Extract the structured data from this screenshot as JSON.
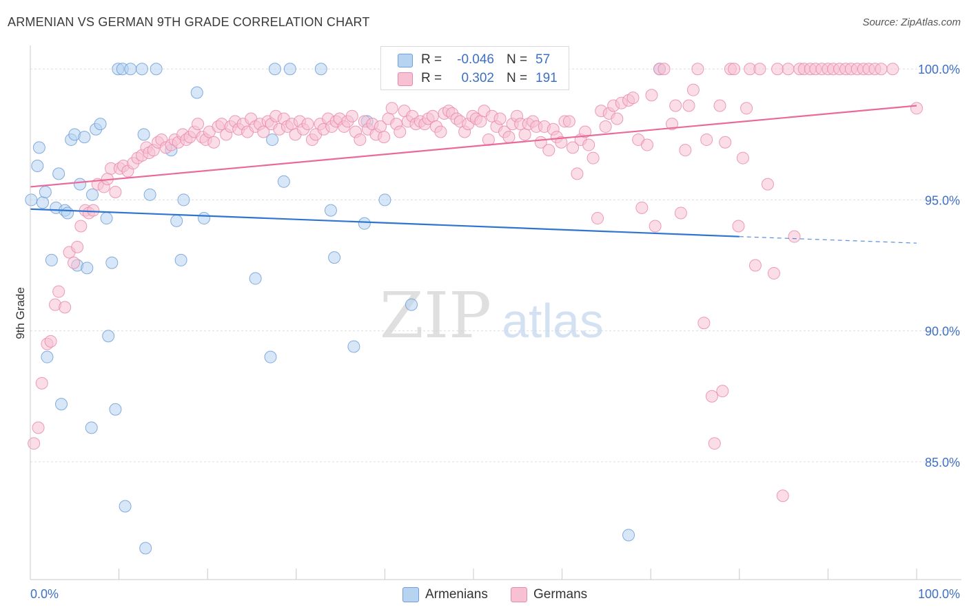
{
  "title": "ARMENIAN VS GERMAN 9TH GRADE CORRELATION CHART",
  "source": "Source: ZipAtlas.com",
  "watermark": {
    "zip": "ZIP",
    "atlas": "atlas"
  },
  "legend_box": {
    "rows": [
      {
        "r_label": "R =",
        "r_value": "-0.046",
        "n_label": "N =",
        "n_value": "57"
      },
      {
        "r_label": "R =",
        "r_value": "0.302",
        "n_label": "N =",
        "n_value": "191"
      }
    ]
  },
  "bottom_legend": {
    "armenians": "Armenians",
    "germans": "Germans"
  },
  "colors": {
    "armenian_fill": "#b7d3f2",
    "armenian_stroke": "#6f9ed8",
    "armenian_line": "#2f74d0",
    "german_fill": "#f7c1d3",
    "german_stroke": "#e989aa",
    "german_line": "#e8699a",
    "grid": "#dddddd",
    "tick_text": "#3d6fc4"
  },
  "chart_data": {
    "type": "scatter",
    "title": "ARMENIAN VS GERMAN 9TH GRADE CORRELATION CHART",
    "xlabel": "",
    "ylabel": "9th Grade",
    "xlim": [
      0,
      100
    ],
    "ylim": [
      80.5,
      100.9
    ],
    "x_tick_labels": [
      "0.0%",
      "100.0%"
    ],
    "y_ticks": [
      85,
      90,
      95,
      100
    ],
    "y_tick_labels": [
      "85.0%",
      "90.0%",
      "95.0%",
      "100.0%"
    ],
    "grid": true,
    "legend": "bottom-center",
    "series": [
      {
        "name": "Armenians",
        "R": -0.046,
        "N": 57,
        "trend": {
          "x0": 0,
          "y0": 94.65,
          "x1": 80,
          "y1": 93.6,
          "dashed_to_x": 100,
          "dashed_to_y": 93.35
        },
        "points": [
          [
            0.1,
            95.0
          ],
          [
            0.8,
            96.3
          ],
          [
            1.0,
            97.0
          ],
          [
            1.4,
            94.9
          ],
          [
            1.7,
            95.3
          ],
          [
            1.9,
            89.0
          ],
          [
            2.4,
            92.7
          ],
          [
            2.9,
            94.7
          ],
          [
            3.2,
            96.0
          ],
          [
            3.5,
            87.2
          ],
          [
            3.9,
            94.6
          ],
          [
            4.2,
            94.5
          ],
          [
            4.6,
            97.3
          ],
          [
            5.0,
            97.5
          ],
          [
            5.3,
            92.5
          ],
          [
            5.6,
            95.6
          ],
          [
            6.1,
            97.4
          ],
          [
            6.4,
            92.4
          ],
          [
            6.9,
            86.3
          ],
          [
            7.0,
            95.2
          ],
          [
            7.4,
            97.7
          ],
          [
            7.9,
            97.9
          ],
          [
            8.6,
            94.3
          ],
          [
            8.8,
            89.8
          ],
          [
            9.2,
            92.6
          ],
          [
            9.6,
            87.0
          ],
          [
            9.9,
            100.0
          ],
          [
            10.4,
            100.0
          ],
          [
            10.7,
            83.3
          ],
          [
            11.3,
            100.0
          ],
          [
            12.6,
            100.0
          ],
          [
            12.8,
            97.5
          ],
          [
            13.0,
            81.7
          ],
          [
            13.5,
            95.2
          ],
          [
            14.2,
            100.0
          ],
          [
            15.9,
            96.9
          ],
          [
            16.5,
            94.2
          ],
          [
            17.0,
            92.7
          ],
          [
            17.3,
            95.0
          ],
          [
            18.8,
            99.1
          ],
          [
            19.6,
            94.3
          ],
          [
            25.4,
            92.0
          ],
          [
            27.1,
            89.0
          ],
          [
            27.3,
            97.3
          ],
          [
            27.6,
            100.0
          ],
          [
            28.6,
            95.7
          ],
          [
            29.3,
            100.0
          ],
          [
            32.8,
            100.0
          ],
          [
            33.9,
            94.6
          ],
          [
            34.3,
            92.8
          ],
          [
            36.5,
            89.4
          ],
          [
            37.7,
            94.1
          ],
          [
            38.0,
            98.0
          ],
          [
            40.0,
            95.0
          ],
          [
            43.0,
            91.0
          ],
          [
            67.5,
            82.2
          ],
          [
            71.0,
            100.0
          ]
        ]
      },
      {
        "name": "Germans",
        "R": 0.302,
        "N": 191,
        "trend": {
          "x0": 0,
          "y0": 95.5,
          "x1": 100,
          "y1": 98.6
        },
        "points": [
          [
            0.4,
            85.7
          ],
          [
            0.9,
            86.3
          ],
          [
            1.3,
            88.0
          ],
          [
            1.9,
            89.5
          ],
          [
            2.3,
            89.6
          ],
          [
            2.8,
            91.0
          ],
          [
            3.2,
            91.5
          ],
          [
            3.9,
            90.9
          ],
          [
            4.4,
            93.0
          ],
          [
            4.9,
            92.6
          ],
          [
            5.3,
            93.2
          ],
          [
            5.7,
            94.0
          ],
          [
            6.2,
            94.6
          ],
          [
            6.6,
            94.5
          ],
          [
            7.1,
            94.6
          ],
          [
            7.6,
            95.6
          ],
          [
            8.3,
            95.5
          ],
          [
            8.7,
            95.8
          ],
          [
            9.1,
            96.2
          ],
          [
            9.6,
            95.3
          ],
          [
            10.1,
            96.2
          ],
          [
            10.5,
            96.3
          ],
          [
            11.0,
            96.1
          ],
          [
            11.6,
            96.4
          ],
          [
            12.1,
            96.6
          ],
          [
            12.6,
            96.7
          ],
          [
            13.1,
            97.0
          ],
          [
            13.4,
            96.8
          ],
          [
            13.9,
            96.9
          ],
          [
            14.4,
            97.2
          ],
          [
            14.8,
            97.3
          ],
          [
            15.3,
            97.0
          ],
          [
            15.9,
            97.1
          ],
          [
            16.3,
            97.3
          ],
          [
            16.7,
            97.2
          ],
          [
            17.2,
            97.5
          ],
          [
            17.6,
            97.3
          ],
          [
            18.0,
            97.4
          ],
          [
            18.5,
            97.6
          ],
          [
            18.9,
            97.9
          ],
          [
            19.4,
            97.4
          ],
          [
            19.8,
            97.3
          ],
          [
            20.2,
            97.6
          ],
          [
            20.7,
            97.2
          ],
          [
            21.2,
            97.8
          ],
          [
            21.6,
            97.9
          ],
          [
            22.1,
            97.5
          ],
          [
            22.6,
            97.8
          ],
          [
            23.1,
            98.0
          ],
          [
            23.5,
            97.7
          ],
          [
            24.0,
            97.9
          ],
          [
            24.5,
            97.6
          ],
          [
            24.9,
            98.1
          ],
          [
            25.4,
            97.8
          ],
          [
            25.9,
            97.9
          ],
          [
            26.3,
            97.6
          ],
          [
            26.8,
            98.0
          ],
          [
            27.2,
            97.9
          ],
          [
            27.7,
            98.2
          ],
          [
            28.1,
            97.7
          ],
          [
            28.6,
            98.1
          ],
          [
            29.0,
            97.8
          ],
          [
            29.5,
            97.9
          ],
          [
            29.9,
            97.5
          ],
          [
            30.4,
            98.0
          ],
          [
            30.8,
            97.7
          ],
          [
            31.3,
            97.9
          ],
          [
            31.8,
            97.3
          ],
          [
            32.2,
            97.5
          ],
          [
            32.7,
            97.9
          ],
          [
            33.1,
            97.7
          ],
          [
            33.6,
            98.1
          ],
          [
            34.0,
            97.8
          ],
          [
            34.5,
            98.0
          ],
          [
            34.9,
            98.1
          ],
          [
            35.4,
            97.8
          ],
          [
            35.8,
            98.0
          ],
          [
            36.3,
            98.2
          ],
          [
            36.7,
            97.6
          ],
          [
            37.2,
            97.3
          ],
          [
            37.7,
            98.0
          ],
          [
            38.1,
            97.7
          ],
          [
            38.6,
            97.9
          ],
          [
            39.0,
            97.5
          ],
          [
            39.5,
            97.8
          ],
          [
            39.9,
            97.4
          ],
          [
            40.4,
            98.1
          ],
          [
            40.8,
            98.5
          ],
          [
            41.3,
            97.9
          ],
          [
            41.7,
            97.6
          ],
          [
            42.2,
            98.4
          ],
          [
            42.6,
            98.0
          ],
          [
            43.1,
            98.2
          ],
          [
            43.5,
            97.9
          ],
          [
            44.0,
            98.0
          ],
          [
            44.5,
            97.9
          ],
          [
            44.9,
            98.1
          ],
          [
            45.4,
            98.2
          ],
          [
            45.8,
            97.8
          ],
          [
            46.3,
            97.6
          ],
          [
            46.7,
            98.3
          ],
          [
            47.2,
            98.4
          ],
          [
            47.6,
            98.3
          ],
          [
            48.1,
            98.1
          ],
          [
            48.5,
            98.0
          ],
          [
            49.0,
            97.6
          ],
          [
            49.4,
            97.9
          ],
          [
            49.9,
            98.2
          ],
          [
            50.3,
            98.1
          ],
          [
            50.8,
            98.0
          ],
          [
            51.2,
            98.4
          ],
          [
            51.7,
            97.3
          ],
          [
            52.1,
            98.2
          ],
          [
            52.6,
            97.8
          ],
          [
            53.0,
            98.1
          ],
          [
            53.5,
            97.6
          ],
          [
            54.0,
            97.4
          ],
          [
            54.4,
            97.9
          ],
          [
            54.9,
            98.2
          ],
          [
            55.3,
            97.9
          ],
          [
            55.8,
            97.5
          ],
          [
            56.2,
            97.9
          ],
          [
            56.7,
            98.0
          ],
          [
            57.1,
            97.8
          ],
          [
            57.6,
            97.2
          ],
          [
            58.0,
            97.8
          ],
          [
            58.5,
            96.9
          ],
          [
            59.0,
            97.7
          ],
          [
            59.4,
            97.4
          ],
          [
            59.9,
            97.2
          ],
          [
            60.3,
            98.0
          ],
          [
            60.8,
            98.0
          ],
          [
            61.2,
            97.0
          ],
          [
            61.7,
            96.0
          ],
          [
            62.1,
            97.3
          ],
          [
            62.6,
            97.6
          ],
          [
            63.0,
            97.1
          ],
          [
            63.5,
            96.6
          ],
          [
            64.0,
            94.3
          ],
          [
            64.4,
            98.4
          ],
          [
            64.9,
            97.8
          ],
          [
            65.3,
            98.3
          ],
          [
            65.8,
            98.6
          ],
          [
            66.2,
            98.1
          ],
          [
            66.7,
            98.7
          ],
          [
            67.5,
            98.8
          ],
          [
            68.0,
            98.9
          ],
          [
            68.6,
            97.3
          ],
          [
            69.0,
            94.7
          ],
          [
            69.6,
            97.1
          ],
          [
            70.1,
            99.0
          ],
          [
            70.5,
            94.0
          ],
          [
            71.0,
            100.0
          ],
          [
            71.5,
            100.0
          ],
          [
            72.4,
            97.9
          ],
          [
            72.8,
            98.6
          ],
          [
            73.4,
            94.5
          ],
          [
            73.9,
            96.9
          ],
          [
            74.3,
            98.6
          ],
          [
            74.8,
            99.2
          ],
          [
            75.3,
            100.0
          ],
          [
            76.0,
            90.3
          ],
          [
            76.3,
            97.3
          ],
          [
            76.9,
            87.5
          ],
          [
            77.2,
            85.7
          ],
          [
            77.8,
            98.6
          ],
          [
            78.1,
            87.7
          ],
          [
            78.4,
            97.2
          ],
          [
            79.0,
            100.0
          ],
          [
            79.4,
            100.0
          ],
          [
            79.9,
            94.0
          ],
          [
            80.4,
            96.6
          ],
          [
            80.8,
            98.5
          ],
          [
            81.2,
            100.0
          ],
          [
            81.8,
            92.5
          ],
          [
            82.3,
            100.0
          ],
          [
            83.2,
            95.6
          ],
          [
            83.9,
            92.2
          ],
          [
            84.3,
            100.0
          ],
          [
            84.9,
            83.7
          ],
          [
            85.5,
            100.0
          ],
          [
            86.2,
            93.6
          ],
          [
            86.8,
            100.0
          ],
          [
            87.3,
            100.0
          ],
          [
            88.0,
            100.0
          ],
          [
            88.6,
            100.0
          ],
          [
            89.3,
            100.0
          ],
          [
            90.0,
            100.0
          ],
          [
            90.6,
            100.0
          ],
          [
            91.3,
            100.0
          ],
          [
            92.0,
            100.0
          ],
          [
            92.6,
            100.0
          ],
          [
            93.3,
            100.0
          ],
          [
            94.0,
            100.0
          ],
          [
            94.6,
            100.0
          ],
          [
            95.3,
            100.0
          ],
          [
            96.0,
            100.0
          ],
          [
            97.3,
            100.0
          ],
          [
            100.0,
            98.5
          ]
        ]
      }
    ]
  }
}
